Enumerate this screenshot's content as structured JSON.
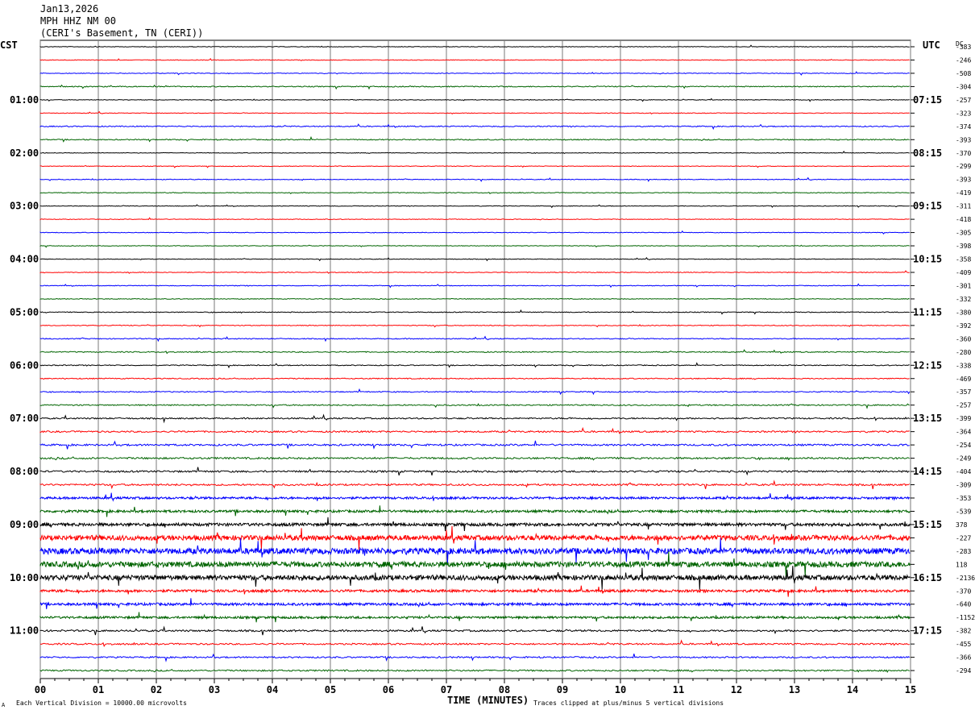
{
  "header": {
    "date": "Jan13,2026",
    "station": "MPH HHZ NM 00",
    "location": "(CERI's Basement, TN (CERI))"
  },
  "left_tz": "CST",
  "right_tz": "UTC",
  "dc_header": "DC",
  "footer": {
    "xlabel": "TIME (MINUTES)",
    "scale_note": "Each Vertical Division = 10000.00 microvolts",
    "clip_note": "Traces clipped at plus/minus 5 vertical divisions",
    "corner_mark": "A"
  },
  "chart_data": {
    "type": "line",
    "title": "Jan13,2026  MPH HHZ NM 00  (CERI's Basement, TN (CERI))",
    "xlabel": "TIME (MINUTES)",
    "xlim": [
      0,
      15
    ],
    "x_ticks": [
      "00",
      "01",
      "02",
      "03",
      "04",
      "05",
      "06",
      "07",
      "08",
      "09",
      "10",
      "11",
      "12",
      "13",
      "14",
      "15"
    ],
    "trace_colors": [
      "#000000",
      "#ff0000",
      "#0000ff",
      "#006400"
    ],
    "left_hour_labels": [
      "01:00",
      "02:00",
      "03:00",
      "04:00",
      "05:00",
      "06:00",
      "07:00",
      "08:00",
      "09:00",
      "10:00",
      "11:00"
    ],
    "right_hour_labels": [
      "07:15",
      "08:15",
      "09:15",
      "10:15",
      "11:15",
      "12:15",
      "13:15",
      "14:15",
      "15:15",
      "16:15",
      "17:15"
    ],
    "dc_offsets": [
      "-383",
      "-246",
      "-508",
      "-304",
      "-257",
      "-323",
      "-374",
      "-393",
      "-370",
      "-299",
      "-393",
      "-419",
      "-311",
      "-418",
      "-305",
      "-398",
      "-358",
      "-409",
      "-301",
      "-332",
      "-380",
      "-392",
      "-360",
      "-280",
      "-338",
      "-469",
      "-357",
      "-257",
      "-399",
      "-364",
      "-254",
      "-249",
      "-404",
      "-309",
      "-353",
      "-539",
      "378",
      "-227",
      "-283",
      "118",
      "-2136",
      "-370",
      "-640",
      "-1152",
      "-382",
      "-455",
      "-366",
      "-294"
    ],
    "activity_level": [
      0.6,
      0.6,
      0.7,
      1.0,
      0.6,
      0.6,
      1.0,
      1.0,
      0.6,
      0.6,
      0.7,
      0.7,
      0.6,
      0.6,
      0.6,
      0.6,
      0.6,
      0.7,
      0.7,
      0.7,
      0.8,
      0.8,
      0.9,
      1.0,
      0.9,
      1.0,
      1.0,
      1.2,
      1.4,
      1.6,
      1.8,
      1.8,
      1.8,
      1.8,
      2.2,
      2.4,
      3.0,
      5.0,
      6.0,
      5.5,
      5.0,
      2.5,
      2.5,
      2.2,
      1.8,
      1.6,
      1.5,
      1.5
    ],
    "grid": true
  }
}
